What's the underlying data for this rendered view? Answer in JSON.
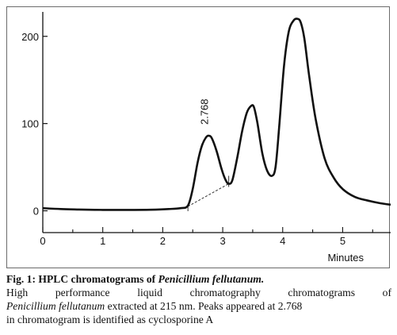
{
  "chart_data": {
    "type": "line",
    "xlabel": "Minutes",
    "ylabel": "",
    "title": "",
    "xlim": [
      0,
      5.8
    ],
    "ylim": [
      -25,
      228
    ],
    "x_ticks": [
      "0",
      "1",
      "2",
      "3",
      "4",
      "5"
    ],
    "y_ticks": [
      "0",
      "100",
      "200"
    ],
    "annotation": {
      "label": "2.768",
      "x": 2.768,
      "y": 86
    },
    "baseline_segment": {
      "x": [
        2.42,
        3.1
      ],
      "y": [
        5,
        31
      ]
    },
    "series": [
      {
        "x": [
          0,
          0.3,
          0.6,
          1.0,
          1.4,
          1.8,
          2.1,
          2.3,
          2.42,
          2.5,
          2.58,
          2.65,
          2.72,
          2.768,
          2.82,
          2.9,
          2.98,
          3.05,
          3.1,
          3.16,
          3.24,
          3.32,
          3.4,
          3.47,
          3.52,
          3.58,
          3.66,
          3.74,
          3.82,
          3.88,
          3.94,
          4.02,
          4.1,
          4.18,
          4.25,
          4.3,
          4.36,
          4.44,
          4.55,
          4.7,
          4.85,
          5.0,
          5.2,
          5.4,
          5.6,
          5.8
        ],
        "y": [
          3,
          2,
          1.5,
          1,
          1,
          1.2,
          2,
          3,
          6,
          25,
          55,
          74,
          84,
          86,
          83,
          68,
          48,
          35,
          31,
          35,
          60,
          90,
          112,
          120,
          119,
          100,
          66,
          46,
          40,
          50,
          95,
          165,
          205,
          218,
          220,
          216,
          198,
          155,
          105,
          60,
          38,
          25,
          16,
          12,
          9,
          7
        ]
      }
    ]
  },
  "caption": {
    "title": "Fig. 1: HPLC chromatograms of ",
    "title_species": "Penicillium fellutanum.",
    "body_line1": "High performance liquid chromatography chromatograms of",
    "body_species": "Penicillium fellutanum",
    "body_line2_rest": " extracted at 215 nm. Peaks appeared at 2.768",
    "body_line3": "in chromatogram is identified as cyclosporine A"
  }
}
